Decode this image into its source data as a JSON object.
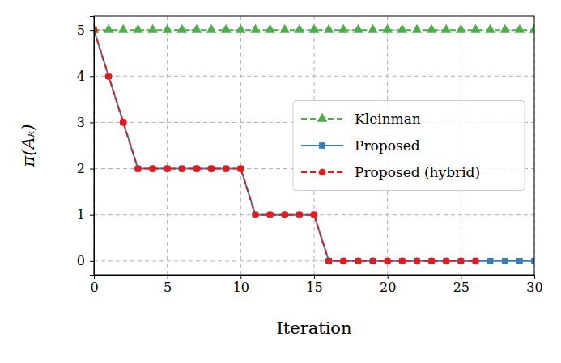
{
  "chart_data": {
    "type": "line",
    "x_label": "Iteration",
    "y_label": "π(Aₖ)",
    "x": [
      0,
      1,
      2,
      3,
      4,
      5,
      6,
      7,
      8,
      9,
      10,
      11,
      12,
      13,
      14,
      15,
      16,
      17,
      18,
      19,
      20,
      21,
      22,
      23,
      24,
      25,
      26,
      27,
      28,
      29,
      30
    ],
    "series": [
      {
        "name": "Kleinman",
        "color": "#4daf4a",
        "marker": "triangle",
        "line_style": "dashed",
        "values": [
          5,
          5,
          5,
          5,
          5,
          5,
          5,
          5,
          5,
          5,
          5,
          5,
          5,
          5,
          5,
          5,
          5,
          5,
          5,
          5,
          5,
          5,
          5,
          5,
          5,
          5,
          5,
          5,
          5,
          5,
          5
        ]
      },
      {
        "name": "Proposed",
        "color": "#377eb8",
        "marker": "square",
        "line_style": "solid",
        "values": [
          5,
          4,
          3,
          2,
          2,
          2,
          2,
          2,
          2,
          2,
          2,
          1,
          1,
          1,
          1,
          1,
          0,
          0,
          0,
          0,
          0,
          0,
          0,
          0,
          0,
          0,
          0,
          0,
          0,
          0,
          0
        ]
      },
      {
        "name": "Proposed (hybrid)",
        "color": "#e41a1c",
        "marker": "circle",
        "line_style": "dashed",
        "values": [
          5,
          4,
          3,
          2,
          2,
          2,
          2,
          2,
          2,
          2,
          2,
          1,
          1,
          1,
          1,
          1,
          0,
          0,
          0,
          0,
          0,
          0,
          0,
          0,
          0,
          0,
          0,
          null,
          null,
          null,
          null
        ]
      }
    ],
    "xlim": [
      0,
      30
    ],
    "ylim": [
      -0.3,
      5.3
    ],
    "xticks": [
      0,
      5,
      10,
      15,
      20,
      25,
      30
    ],
    "yticks": [
      0,
      1,
      2,
      3,
      4,
      5
    ],
    "grid": true,
    "legend": "center right"
  }
}
